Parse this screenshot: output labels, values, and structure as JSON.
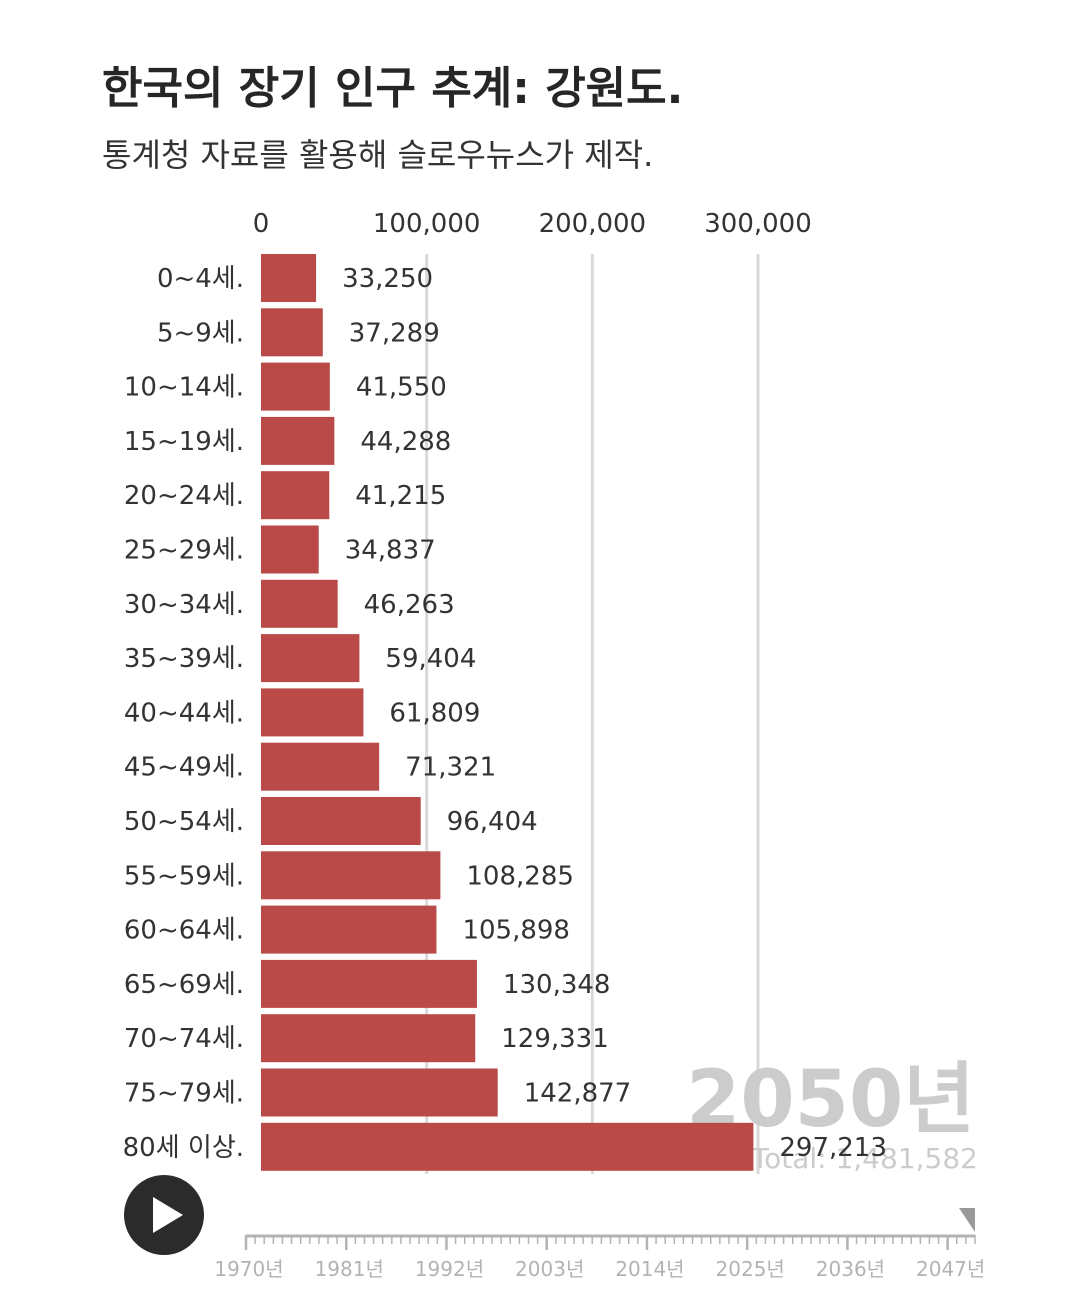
{
  "title": "한국의 장기 인구 추계: 강원도.",
  "subtitle": "통계청 자료를 활용해 슬로우뉴스가 제작.",
  "colors": {
    "bar": "#b94a48",
    "grid": "#d9d9d9",
    "watermark": "#cccccc",
    "slider": "#b3b3b3"
  },
  "chart_data": {
    "type": "bar",
    "orientation": "horizontal",
    "categories": [
      "0~4세.",
      "5~9세.",
      "10~14세.",
      "15~19세.",
      "20~24세.",
      "25~29세.",
      "30~34세.",
      "35~39세.",
      "40~44세.",
      "45~49세.",
      "50~54세.",
      "55~59세.",
      "60~64세.",
      "65~69세.",
      "70~74세.",
      "75~79세.",
      "80세 이상."
    ],
    "values": [
      33250,
      37289,
      41550,
      44288,
      41215,
      34837,
      46263,
      59404,
      61809,
      71321,
      96404,
      108285,
      105898,
      130348,
      129331,
      142877,
      297213
    ],
    "value_labels": [
      "33,250",
      "37,289",
      "41,550",
      "44,288",
      "41,215",
      "34,837",
      "46,263",
      "59,404",
      "61,809",
      "71,321",
      "96,404",
      "108,285",
      "105,898",
      "130,348",
      "129,331",
      "142,877",
      "297,213"
    ],
    "x_ticks": [
      0,
      100000,
      200000,
      300000
    ],
    "x_tick_labels": [
      "0",
      "100,000",
      "200,000",
      "300,000"
    ],
    "xlim": [
      0,
      300000
    ],
    "axis_position": "top",
    "grid": true,
    "year_label": "2050년",
    "total_label": "Total: 1,481,582"
  },
  "player": {
    "play_icon": "play-icon",
    "timeline_labels": [
      "1970년",
      "1981년",
      "1992년",
      "2003년",
      "2014년",
      "2025년",
      "2036년",
      "2047년"
    ],
    "selected_year": 2050
  }
}
